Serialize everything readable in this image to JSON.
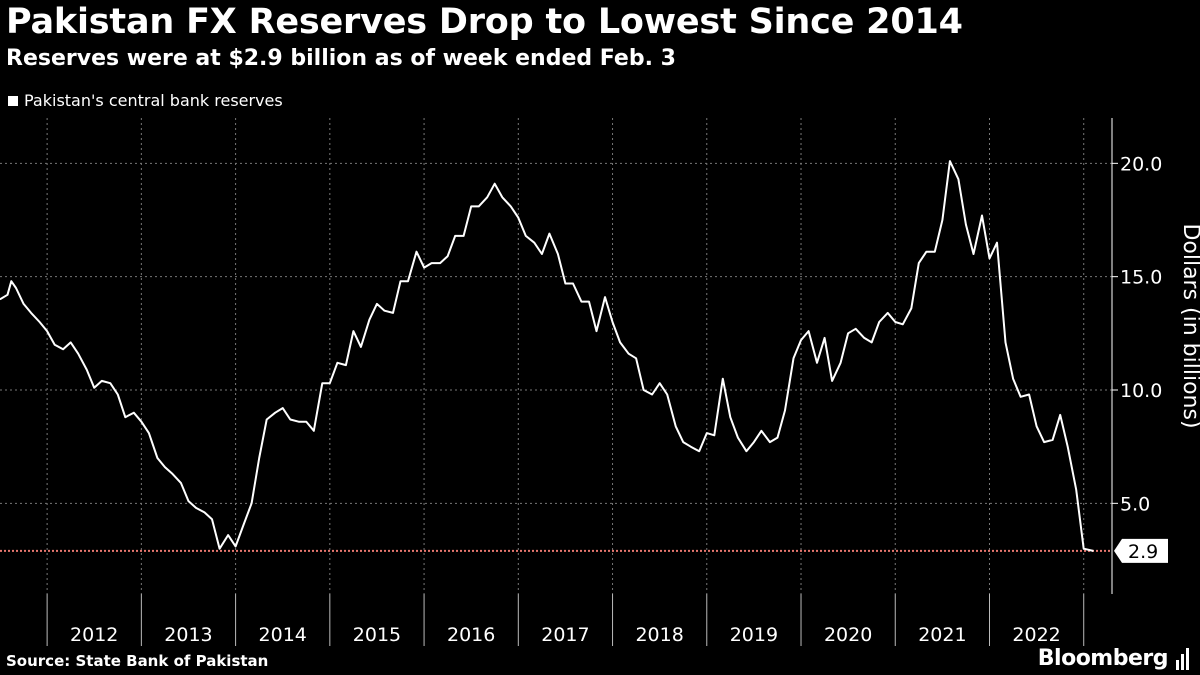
{
  "header": {
    "title": "Pakistan FX Reserves Drop to Lowest Since 2014",
    "subtitle": "Reserves were at $2.9 billion as of week ended Feb. 3"
  },
  "legend": {
    "label": "Pakistan's central bank reserves"
  },
  "footer": {
    "source": "Source: State Bank of Pakistan",
    "brand": "Bloomberg"
  },
  "colors": {
    "background": "#000000",
    "line": "#ffffff",
    "reference_line": "#e8776f",
    "grid": "#777777"
  },
  "chart_data": {
    "type": "line",
    "title": "Pakistan FX Reserves Drop to Lowest Since 2014",
    "subtitle": "Reserves were at $2.9 billion as of week ended Feb. 3",
    "ylabel": "Dollars (in billions)",
    "ylim": [
      1.0,
      22.0
    ],
    "xlim": [
      2011.5,
      2023.3
    ],
    "y_ticks": [
      5.0,
      10.0,
      15.0,
      20.0
    ],
    "x_ticks": [
      "2012",
      "2013",
      "2014",
      "2015",
      "2016",
      "2017",
      "2018",
      "2019",
      "2020",
      "2021",
      "2022"
    ],
    "grid": true,
    "legend_position": "top-left",
    "annotation": {
      "label": "2.9",
      "value": 2.9
    },
    "series": [
      {
        "name": "Pakistan's central bank reserves",
        "x": [
          2011.5,
          2011.58,
          2011.62,
          2011.67,
          2011.75,
          2011.83,
          2011.92,
          2012.0,
          2012.08,
          2012.17,
          2012.25,
          2012.33,
          2012.42,
          2012.5,
          2012.58,
          2012.67,
          2012.75,
          2012.83,
          2012.92,
          2013.0,
          2013.08,
          2013.17,
          2013.25,
          2013.33,
          2013.42,
          2013.5,
          2013.58,
          2013.67,
          2013.75,
          2013.83,
          2013.92,
          2014.0,
          2014.08,
          2014.17,
          2014.25,
          2014.33,
          2014.42,
          2014.5,
          2014.58,
          2014.67,
          2014.75,
          2014.83,
          2014.92,
          2015.0,
          2015.08,
          2015.17,
          2015.25,
          2015.33,
          2015.42,
          2015.5,
          2015.58,
          2015.67,
          2015.75,
          2015.83,
          2015.92,
          2016.0,
          2016.08,
          2016.17,
          2016.25,
          2016.33,
          2016.42,
          2016.5,
          2016.58,
          2016.67,
          2016.75,
          2016.83,
          2016.92,
          2017.0,
          2017.08,
          2017.17,
          2017.25,
          2017.33,
          2017.42,
          2017.5,
          2017.58,
          2017.67,
          2017.75,
          2017.83,
          2017.92,
          2018.0,
          2018.08,
          2018.17,
          2018.25,
          2018.33,
          2018.42,
          2018.5,
          2018.58,
          2018.67,
          2018.75,
          2018.83,
          2018.92,
          2019.0,
          2019.08,
          2019.17,
          2019.25,
          2019.33,
          2019.42,
          2019.5,
          2019.58,
          2019.67,
          2019.75,
          2019.83,
          2019.92,
          2020.0,
          2020.08,
          2020.17,
          2020.25,
          2020.33,
          2020.42,
          2020.5,
          2020.58,
          2020.67,
          2020.75,
          2020.83,
          2020.92,
          2021.0,
          2021.08,
          2021.17,
          2021.25,
          2021.33,
          2021.42,
          2021.5,
          2021.58,
          2021.67,
          2021.75,
          2021.83,
          2021.92,
          2022.0,
          2022.08,
          2022.17,
          2022.25,
          2022.33,
          2022.42,
          2022.5,
          2022.58,
          2022.67,
          2022.75,
          2022.83,
          2022.92,
          2023.0,
          2023.1
        ],
        "values": [
          14.0,
          14.2,
          14.8,
          14.5,
          13.8,
          13.4,
          13.0,
          12.6,
          12.0,
          11.8,
          12.1,
          11.6,
          10.9,
          10.1,
          10.4,
          10.3,
          9.8,
          8.8,
          9.0,
          8.6,
          8.1,
          7.0,
          6.6,
          6.3,
          5.9,
          5.1,
          4.8,
          4.6,
          4.3,
          3.0,
          3.6,
          3.1,
          4.0,
          5.0,
          7.0,
          8.7,
          9.0,
          9.2,
          8.7,
          8.6,
          8.6,
          8.2,
          10.3,
          10.3,
          11.2,
          11.1,
          12.6,
          11.9,
          13.1,
          13.8,
          13.5,
          13.4,
          14.8,
          14.8,
          16.1,
          15.4,
          15.6,
          15.6,
          15.9,
          16.8,
          16.8,
          18.1,
          18.1,
          18.5,
          19.1,
          18.5,
          18.1,
          17.6,
          16.8,
          16.5,
          16.0,
          16.9,
          16.0,
          14.7,
          14.7,
          13.9,
          13.9,
          12.6,
          14.1,
          13.0,
          12.1,
          11.6,
          11.4,
          10.0,
          9.8,
          10.3,
          9.8,
          8.4,
          7.7,
          7.5,
          7.3,
          8.1,
          8.0,
          10.5,
          8.8,
          7.9,
          7.3,
          7.7,
          8.2,
          7.7,
          7.9,
          9.1,
          11.4,
          12.2,
          12.6,
          11.2,
          12.3,
          10.4,
          11.2,
          12.5,
          12.7,
          12.3,
          12.1,
          13.0,
          13.4,
          13.0,
          12.9,
          13.6,
          15.6,
          16.1,
          16.1,
          17.5,
          20.1,
          19.3,
          17.3,
          16.0,
          17.7,
          15.8,
          16.5,
          12.1,
          10.5,
          9.7,
          9.8,
          8.4,
          7.7,
          7.8,
          8.9,
          7.5,
          5.6,
          3.0,
          2.9
        ]
      }
    ]
  }
}
